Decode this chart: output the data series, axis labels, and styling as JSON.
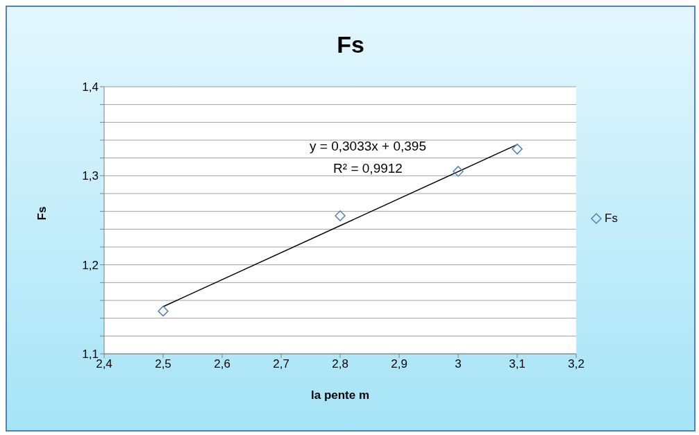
{
  "chart_data": {
    "type": "scatter",
    "title": "Fs",
    "xlabel": "la pente  m",
    "ylabel": "Fs",
    "series": [
      {
        "name": "Fs",
        "color": "#4f81bd",
        "x": [
          2.5,
          2.8,
          3,
          3.1
        ],
        "values": [
          1.148,
          1.255,
          1.305,
          1.33
        ],
        "marker": "diamond"
      },
      {
        "type": "line",
        "color": "#000000",
        "x": [
          2.5,
          3.1
        ],
        "values": [
          1.153,
          1.335
        ],
        "marker": "none"
      }
    ],
    "annotations": [
      "y = 0,3033x + 0,395",
      "R² = 0,9912"
    ],
    "xlim": [
      2.4,
      3.2
    ],
    "xticks": [
      {
        "value": 2.4,
        "label": "2,4"
      },
      {
        "value": 2.5,
        "label": "2,5"
      },
      {
        "value": 2.6,
        "label": "2,6"
      },
      {
        "value": 2.7,
        "label": "2,7"
      },
      {
        "value": 2.8,
        "label": "2,8"
      },
      {
        "value": 2.9,
        "label": "2,9"
      },
      {
        "value": 3,
        "label": "3"
      },
      {
        "value": 3.1,
        "label": "3,1"
      },
      {
        "value": 3.2,
        "label": "3,2"
      }
    ],
    "ylim": [
      1.1,
      1.4
    ],
    "yticks": [
      {
        "value": 1.1,
        "label": "1,1"
      },
      {
        "value": 1.12,
        "label": null
      },
      {
        "value": 1.14,
        "label": null
      },
      {
        "value": 1.16,
        "label": null
      },
      {
        "value": 1.18,
        "label": null
      },
      {
        "value": 1.2,
        "label": "1,2"
      },
      {
        "value": 1.22,
        "label": null
      },
      {
        "value": 1.24,
        "label": null
      },
      {
        "value": 1.26,
        "label": null
      },
      {
        "value": 1.28,
        "label": null
      },
      {
        "value": 1.3,
        "label": "1,3"
      },
      {
        "value": 1.32,
        "label": null
      },
      {
        "value": 1.34,
        "label": null
      },
      {
        "value": 1.36,
        "label": null
      },
      {
        "value": 1.38,
        "label": null
      },
      {
        "value": 1.4,
        "label": "1,4"
      }
    ],
    "grid": "y",
    "legend": "right"
  }
}
